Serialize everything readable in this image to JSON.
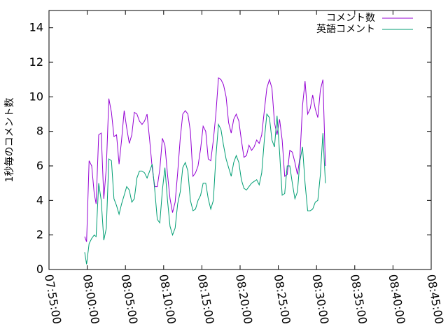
{
  "chart_data": {
    "type": "line",
    "ylabel": "1秒毎のコメント数",
    "xlabel": "",
    "title": "",
    "ylim": [
      0,
      15
    ],
    "yticks": [
      "0",
      "2",
      "4",
      "6",
      "8",
      "10",
      "12",
      "14"
    ],
    "ytick_values": [
      0,
      2,
      4,
      6,
      8,
      10,
      12,
      14
    ],
    "xlim": [
      "07:55:00",
      "08:45:00"
    ],
    "xticks": [
      "07:55:00",
      "08:00:00",
      "08:05:00",
      "08:10:00",
      "08:15:00",
      "08:20:00",
      "08:25:00",
      "08:30:00",
      "08:35:00",
      "08:40:00",
      "08:45:00"
    ],
    "legend_position": "top-right",
    "series": [
      {
        "name": "コメント数",
        "color": "#9400d3",
        "points": [
          [
            "07:59:40",
            1.9
          ],
          [
            "07:59:55",
            1.6
          ],
          [
            "08:00:15",
            6.3
          ],
          [
            "08:00:35",
            6.0
          ],
          [
            "08:00:55",
            4.4
          ],
          [
            "08:01:10",
            3.8
          ],
          [
            "08:01:30",
            7.8
          ],
          [
            "08:01:50",
            7.9
          ],
          [
            "08:02:10",
            4.1
          ],
          [
            "08:02:30",
            5.9
          ],
          [
            "08:02:50",
            9.9
          ],
          [
            "08:03:10",
            9.1
          ],
          [
            "08:03:30",
            7.7
          ],
          [
            "08:03:50",
            7.8
          ],
          [
            "08:04:10",
            6.1
          ],
          [
            "08:04:30",
            7.5
          ],
          [
            "08:04:50",
            9.2
          ],
          [
            "08:05:10",
            8.2
          ],
          [
            "08:05:30",
            7.3
          ],
          [
            "08:05:50",
            7.8
          ],
          [
            "08:06:10",
            9.1
          ],
          [
            "08:06:30",
            9.0
          ],
          [
            "08:06:50",
            8.6
          ],
          [
            "08:07:10",
            8.4
          ],
          [
            "08:07:30",
            8.6
          ],
          [
            "08:07:50",
            9.0
          ],
          [
            "08:08:10",
            7.5
          ],
          [
            "08:08:30",
            5.9
          ],
          [
            "08:08:50",
            4.8
          ],
          [
            "08:09:10",
            4.8
          ],
          [
            "08:09:30",
            5.8
          ],
          [
            "08:09:50",
            7.6
          ],
          [
            "08:10:10",
            7.2
          ],
          [
            "08:10:30",
            5.5
          ],
          [
            "08:10:50",
            4.1
          ],
          [
            "08:11:10",
            3.3
          ],
          [
            "08:11:30",
            3.9
          ],
          [
            "08:11:50",
            5.6
          ],
          [
            "08:12:10",
            7.6
          ],
          [
            "08:12:30",
            9.0
          ],
          [
            "08:12:50",
            9.2
          ],
          [
            "08:13:10",
            9.0
          ],
          [
            "08:13:30",
            8.0
          ],
          [
            "08:13:50",
            5.4
          ],
          [
            "08:14:10",
            5.6
          ],
          [
            "08:14:30",
            6.0
          ],
          [
            "08:14:50",
            7.0
          ],
          [
            "08:15:10",
            8.3
          ],
          [
            "08:15:30",
            8.0
          ],
          [
            "08:15:50",
            6.4
          ],
          [
            "08:16:10",
            6.3
          ],
          [
            "08:16:30",
            7.5
          ],
          [
            "08:16:50",
            9.0
          ],
          [
            "08:17:10",
            11.1
          ],
          [
            "08:17:30",
            11.0
          ],
          [
            "08:17:50",
            10.7
          ],
          [
            "08:18:10",
            10.0
          ],
          [
            "08:18:30",
            8.5
          ],
          [
            "08:18:50",
            7.9
          ],
          [
            "08:19:10",
            8.7
          ],
          [
            "08:19:30",
            9.0
          ],
          [
            "08:19:50",
            8.6
          ],
          [
            "08:20:10",
            7.5
          ],
          [
            "08:20:30",
            6.5
          ],
          [
            "08:20:50",
            6.6
          ],
          [
            "08:21:10",
            7.2
          ],
          [
            "08:21:30",
            6.9
          ],
          [
            "08:21:50",
            7.1
          ],
          [
            "08:22:10",
            7.5
          ],
          [
            "08:22:30",
            7.3
          ],
          [
            "08:22:50",
            7.8
          ],
          [
            "08:23:10",
            9.2
          ],
          [
            "08:23:30",
            10.5
          ],
          [
            "08:23:50",
            11.0
          ],
          [
            "08:24:10",
            10.5
          ],
          [
            "08:24:30",
            8.5
          ],
          [
            "08:24:50",
            7.8
          ],
          [
            "08:25:10",
            8.7
          ],
          [
            "08:25:30",
            7.5
          ],
          [
            "08:25:50",
            5.4
          ],
          [
            "08:26:10",
            5.5
          ],
          [
            "08:26:30",
            6.9
          ],
          [
            "08:26:50",
            6.8
          ],
          [
            "08:27:10",
            6.2
          ],
          [
            "08:27:30",
            5.5
          ],
          [
            "08:27:50",
            6.5
          ],
          [
            "08:28:10",
            9.5
          ],
          [
            "08:28:30",
            10.9
          ],
          [
            "08:28:50",
            9.0
          ],
          [
            "08:29:10",
            9.3
          ],
          [
            "08:29:30",
            10.1
          ],
          [
            "08:29:50",
            9.3
          ],
          [
            "08:30:10",
            8.8
          ],
          [
            "08:30:30",
            10.4
          ],
          [
            "08:30:50",
            11.0
          ],
          [
            "08:31:10",
            6.0
          ]
        ]
      },
      {
        "name": "英語コメント",
        "color": "#009e73",
        "points": [
          [
            "07:59:40",
            1.0
          ],
          [
            "07:59:55",
            0.3
          ],
          [
            "08:00:15",
            1.5
          ],
          [
            "08:00:35",
            1.8
          ],
          [
            "08:00:55",
            2.0
          ],
          [
            "08:01:10",
            1.9
          ],
          [
            "08:01:30",
            5.0
          ],
          [
            "08:01:50",
            4.0
          ],
          [
            "08:02:10",
            1.7
          ],
          [
            "08:02:30",
            2.4
          ],
          [
            "08:02:50",
            6.4
          ],
          [
            "08:03:10",
            6.3
          ],
          [
            "08:03:30",
            4.1
          ],
          [
            "08:03:50",
            3.7
          ],
          [
            "08:04:10",
            3.2
          ],
          [
            "08:04:30",
            3.8
          ],
          [
            "08:04:50",
            4.3
          ],
          [
            "08:05:10",
            4.8
          ],
          [
            "08:05:30",
            4.6
          ],
          [
            "08:05:50",
            3.9
          ],
          [
            "08:06:10",
            4.1
          ],
          [
            "08:06:30",
            5.3
          ],
          [
            "08:06:50",
            5.7
          ],
          [
            "08:07:10",
            5.7
          ],
          [
            "08:07:30",
            5.6
          ],
          [
            "08:07:50",
            5.3
          ],
          [
            "08:08:10",
            5.7
          ],
          [
            "08:08:30",
            6.1
          ],
          [
            "08:08:50",
            4.6
          ],
          [
            "08:09:10",
            2.9
          ],
          [
            "08:09:30",
            2.7
          ],
          [
            "08:09:50",
            4.6
          ],
          [
            "08:10:10",
            5.9
          ],
          [
            "08:10:30",
            4.0
          ],
          [
            "08:10:50",
            2.5
          ],
          [
            "08:11:10",
            2.0
          ],
          [
            "08:11:30",
            2.4
          ],
          [
            "08:11:50",
            3.8
          ],
          [
            "08:12:10",
            4.5
          ],
          [
            "08:12:30",
            5.9
          ],
          [
            "08:12:50",
            6.2
          ],
          [
            "08:13:10",
            5.7
          ],
          [
            "08:13:30",
            4.0
          ],
          [
            "08:13:50",
            3.4
          ],
          [
            "08:14:10",
            3.5
          ],
          [
            "08:14:30",
            4.0
          ],
          [
            "08:14:50",
            4.3
          ],
          [
            "08:15:10",
            5.0
          ],
          [
            "08:15:30",
            5.0
          ],
          [
            "08:15:50",
            4.1
          ],
          [
            "08:16:10",
            3.5
          ],
          [
            "08:16:30",
            4.0
          ],
          [
            "08:16:50",
            6.5
          ],
          [
            "08:17:10",
            8.4
          ],
          [
            "08:17:30",
            8.1
          ],
          [
            "08:17:50",
            7.2
          ],
          [
            "08:18:10",
            6.4
          ],
          [
            "08:18:30",
            5.9
          ],
          [
            "08:18:50",
            5.4
          ],
          [
            "08:19:10",
            6.2
          ],
          [
            "08:19:30",
            6.6
          ],
          [
            "08:19:50",
            6.2
          ],
          [
            "08:20:10",
            5.2
          ],
          [
            "08:20:30",
            4.7
          ],
          [
            "08:20:50",
            4.6
          ],
          [
            "08:21:10",
            4.8
          ],
          [
            "08:21:30",
            5.0
          ],
          [
            "08:21:50",
            5.1
          ],
          [
            "08:22:10",
            5.2
          ],
          [
            "08:22:30",
            4.9
          ],
          [
            "08:22:50",
            5.6
          ],
          [
            "08:23:10",
            7.5
          ],
          [
            "08:23:30",
            9.0
          ],
          [
            "08:23:50",
            8.8
          ],
          [
            "08:24:10",
            7.5
          ],
          [
            "08:24:30",
            7.1
          ],
          [
            "08:24:50",
            8.9
          ],
          [
            "08:25:10",
            6.8
          ],
          [
            "08:25:30",
            4.3
          ],
          [
            "08:25:50",
            4.4
          ],
          [
            "08:26:10",
            6.0
          ],
          [
            "08:26:30",
            6.0
          ],
          [
            "08:26:50",
            5.0
          ],
          [
            "08:27:10",
            4.1
          ],
          [
            "08:27:30",
            4.5
          ],
          [
            "08:27:50",
            6.3
          ],
          [
            "08:28:10",
            7.1
          ],
          [
            "08:28:30",
            5.0
          ],
          [
            "08:28:50",
            3.4
          ],
          [
            "08:29:10",
            3.4
          ],
          [
            "08:29:30",
            3.5
          ],
          [
            "08:29:50",
            3.9
          ],
          [
            "08:30:10",
            4.0
          ],
          [
            "08:30:30",
            5.5
          ],
          [
            "08:30:50",
            7.9
          ],
          [
            "08:31:10",
            5.0
          ]
        ]
      }
    ]
  }
}
